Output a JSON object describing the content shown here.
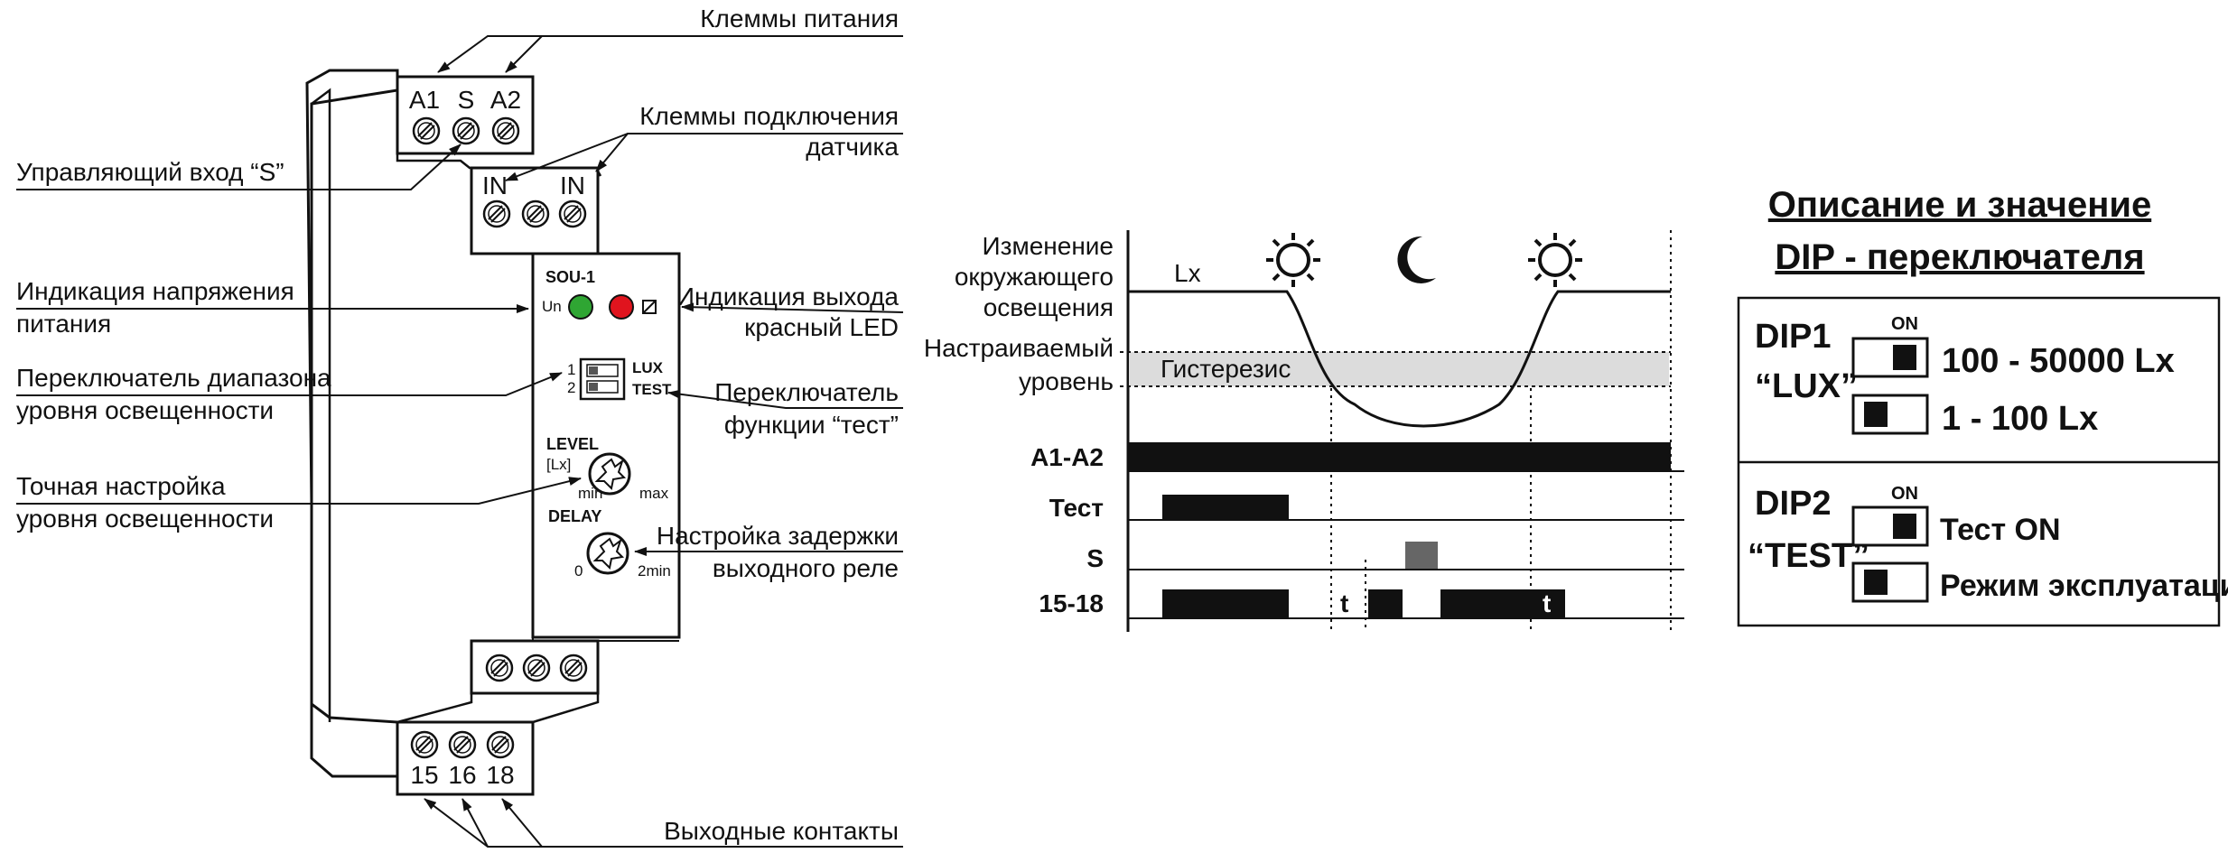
{
  "device": {
    "model": "SOU-1",
    "top_terminals": [
      "A1",
      "S",
      "A2"
    ],
    "sensor_terminals": [
      "IN",
      "IN"
    ],
    "bottom_terminals": [
      "15",
      "16",
      "18"
    ],
    "led_un": "Un",
    "led_un_color": "#2fa633",
    "led_out_color": "#e0141e",
    "dip_lux": "LUX",
    "dip_test": "TEST",
    "dip_num_1": "1",
    "dip_num_2": "2",
    "level_label": "LEVEL",
    "level_unit": "[Lx]",
    "level_min": "min",
    "level_max": "max",
    "delay_label": "DELAY",
    "delay_min": "0",
    "delay_max": "2min"
  },
  "callouts": {
    "power_terminals": "Клеммы питания",
    "sensor_terminals_1": "Клеммы подключения",
    "sensor_terminals_2": "датчика",
    "control_input": "Управляющий вход “S”",
    "voltage_ind_1": "Индикация напряжения",
    "voltage_ind_2": "питания",
    "output_ind_1": "Индикация выхода",
    "output_ind_2": "красный LED",
    "range_switch_1": "Переключатель диапазона",
    "range_switch_2": "уровня освещенности",
    "test_switch_1": "Переключатель",
    "test_switch_2": "функции “тест”",
    "fine_adjust_1": "Точная настройка",
    "fine_adjust_2": "уровня освещенности",
    "delay_adjust_1": "Настройка задержки",
    "delay_adjust_2": "выходного реле",
    "output_contacts": "Выходные контакты"
  },
  "timing": {
    "light_change_1": "Изменение",
    "light_change_2": "окружающего",
    "light_change_3": "освещения",
    "lx": "Lx",
    "set_level_1": "Настраиваемый",
    "set_level_2": "уровень",
    "hysteresis": "Гистерезис",
    "rows": [
      "A1-A2",
      "Тест",
      "S",
      "15-18"
    ],
    "delay_marker": "t",
    "sun_icon": "sun-icon",
    "moon_icon": "moon-icon"
  },
  "dip": {
    "title_1": "Описание и значение",
    "title_2": "DIP - переключателя",
    "dip1_name": "DIP1",
    "dip1_func": "“LUX”",
    "dip1_on": "ON",
    "dip1_opt_on": "100 - 50000 Lx",
    "dip1_opt_off": "1 - 100 Lx",
    "dip2_name": "DIP2",
    "dip2_func": "“TEST”",
    "dip2_on": "ON",
    "dip2_opt_on": "Тест ON",
    "dip2_opt_off": "Режим эксплуатации"
  }
}
